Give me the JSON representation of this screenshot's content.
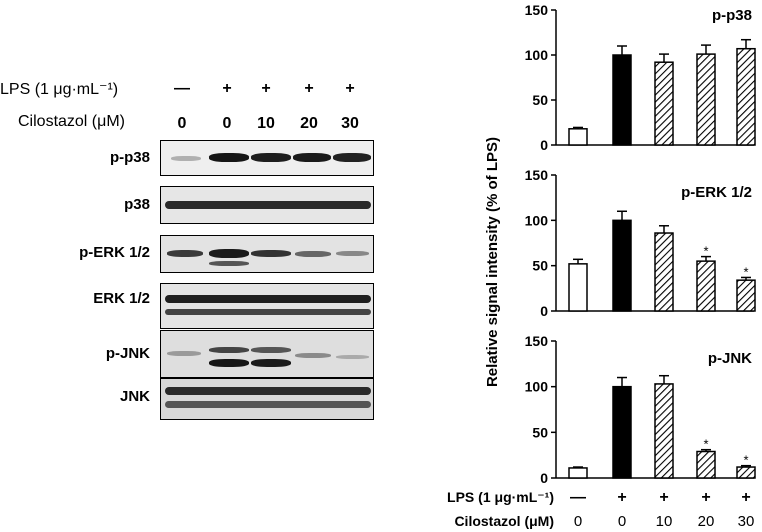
{
  "blot": {
    "lps_label": "LPS (1 μg·mL⁻¹)",
    "cilostazol_label": "Cilostazol (μM)",
    "lps_values": [
      "—",
      "+",
      "+",
      "+",
      "+"
    ],
    "cilostazol_values": [
      "0",
      "0",
      "10",
      "20",
      "30"
    ],
    "panels": [
      {
        "label": "p-p38"
      },
      {
        "label": "p38"
      },
      {
        "label": "p-ERK 1/2"
      },
      {
        "label": "ERK 1/2"
      },
      {
        "label": "p-JNK"
      },
      {
        "label": "JNK"
      }
    ]
  },
  "chart_data": {
    "type": "bar",
    "ylabel": "Relative signal intensity (% of LPS)",
    "ylim": [
      0,
      150
    ],
    "yticks": [
      0,
      50,
      100,
      150
    ],
    "categories": [
      "0",
      "0",
      "10",
      "20",
      "30"
    ],
    "bar_styles": [
      "open",
      "solid",
      "hatched",
      "hatched",
      "hatched"
    ],
    "x_lps_label": "LPS (1 μg·mL⁻¹)",
    "x_lps_values": [
      "—",
      "+",
      "+",
      "+",
      "+"
    ],
    "x_cilostazol_label": "Cilostazol (μM)",
    "panels": [
      {
        "title": "p-p38",
        "values": [
          18,
          100,
          92,
          101,
          107
        ],
        "errors": [
          1.5,
          10,
          9,
          10,
          10
        ],
        "significant": [
          false,
          false,
          false,
          false,
          false
        ]
      },
      {
        "title": "p-ERK 1/2",
        "values": [
          52,
          100,
          86,
          55,
          34
        ],
        "errors": [
          5,
          10,
          8,
          5,
          3
        ],
        "significant": [
          false,
          false,
          false,
          true,
          true
        ]
      },
      {
        "title": "p-JNK",
        "values": [
          11,
          100,
          103,
          29,
          12
        ],
        "errors": [
          1,
          10,
          9,
          2,
          1.5
        ],
        "significant": [
          false,
          false,
          false,
          true,
          true
        ]
      }
    ],
    "significance_marker": "*"
  }
}
